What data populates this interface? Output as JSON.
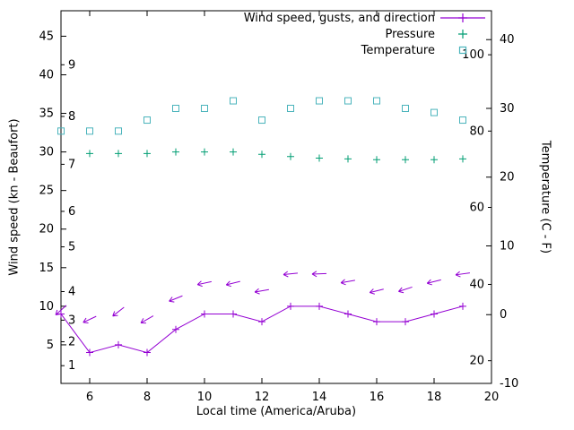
{
  "colors": {
    "wind": "#9400d3",
    "pressure": "#009e73",
    "temperature": "#4ab4bc",
    "axis": "#000000",
    "background": "#ffffff"
  },
  "labels": {
    "xlabel": "Local time (America/Aruba)",
    "ylabel_left": "Wind speed (kn - Beaufort)",
    "ylabel_right": "Temperature (C - F)"
  },
  "legend": {
    "wind": "Wind speed, gusts, and direction",
    "pressure": "Pressure",
    "temperature": "Temperature"
  },
  "chart_data": {
    "type": "line",
    "title": "",
    "xlabel": "Local time (America/Aruba)",
    "ylabel_left": "Wind speed (kn - Beaufort)",
    "ylabel_right": "Temperature (C - F)",
    "xlim": [
      5,
      20
    ],
    "xticks": [
      6,
      8,
      10,
      12,
      14,
      16,
      18,
      20
    ],
    "ylim_left": [
      0,
      48.3
    ],
    "yticks_left": [
      5,
      10,
      15,
      20,
      25,
      30,
      35,
      40,
      45
    ],
    "beaufort_ticks": [
      {
        "label": "1",
        "kn": 2.3
      },
      {
        "label": "2",
        "kn": 5.4
      },
      {
        "label": "3",
        "kn": 8.2
      },
      {
        "label": "4",
        "kn": 11.9
      },
      {
        "label": "5",
        "kn": 17.7
      },
      {
        "label": "6",
        "kn": 22.3
      },
      {
        "label": "7",
        "kn": 28.4
      },
      {
        "label": "8",
        "kn": 34.6
      },
      {
        "label": "9",
        "kn": 41.3
      }
    ],
    "ylim_right": [
      -10,
      44.2
    ],
    "yticks_right": [
      -10,
      0,
      10,
      20,
      30,
      40
    ],
    "fahrenheit_ticks": [
      {
        "label": "20",
        "c": -6.7
      },
      {
        "label": "40",
        "c": 4.4
      },
      {
        "label": "60",
        "c": 15.6
      },
      {
        "label": "80",
        "c": 26.7
      },
      {
        "label": "100",
        "c": 37.8
      }
    ],
    "grid": false,
    "legend_position": "top-right-inside",
    "series": [
      {
        "name": "Wind speed, gusts, and direction",
        "type": "linespoints",
        "marker": "plus",
        "axis": "left",
        "color_key": "wind",
        "x": [
          5,
          6,
          7,
          8,
          9,
          10,
          11,
          12,
          13,
          14,
          15,
          16,
          17,
          18,
          19
        ],
        "values": [
          9,
          4,
          5,
          4,
          7,
          9,
          9,
          8,
          10,
          10,
          9,
          8,
          8,
          9,
          10
        ]
      },
      {
        "name": "Wind gusts and direction vectors",
        "type": "vectors",
        "axis": "left",
        "color_key": "wind",
        "x": [
          5,
          6,
          7,
          8,
          9,
          10,
          11,
          12,
          13,
          14,
          15,
          16,
          17,
          18,
          19
        ],
        "values": [
          9.5,
          8.3,
          9.3,
          8.3,
          11,
          13,
          13,
          12,
          14.2,
          14.2,
          13.2,
          12,
          12.2,
          13.2,
          14.2
        ],
        "angles_deg": [
          42,
          25,
          38,
          30,
          22,
          12,
          14,
          10,
          6,
          2,
          10,
          14,
          18,
          14,
          8
        ]
      },
      {
        "name": "Pressure",
        "type": "points",
        "marker": "plus",
        "axis": "left",
        "color_key": "pressure",
        "x": [
          6,
          7,
          8,
          9,
          10,
          11,
          12,
          13,
          14,
          15,
          16,
          17,
          18,
          19
        ],
        "values": [
          29.8,
          29.8,
          29.8,
          30.0,
          30.0,
          30.0,
          29.7,
          29.4,
          29.2,
          29.1,
          29.0,
          29.0,
          29.0,
          29.1
        ]
      },
      {
        "name": "Temperature",
        "type": "points",
        "marker": "square",
        "axis": "right",
        "color_key": "temperature",
        "x": [
          5,
          6,
          7,
          8,
          9,
          10,
          11,
          12,
          13,
          14,
          15,
          16,
          17,
          18,
          19
        ],
        "values": [
          26.7,
          26.7,
          26.7,
          28.3,
          30.0,
          30.0,
          31.1,
          28.3,
          30.0,
          31.1,
          31.1,
          31.1,
          30.0,
          29.4,
          28.3
        ]
      }
    ]
  }
}
